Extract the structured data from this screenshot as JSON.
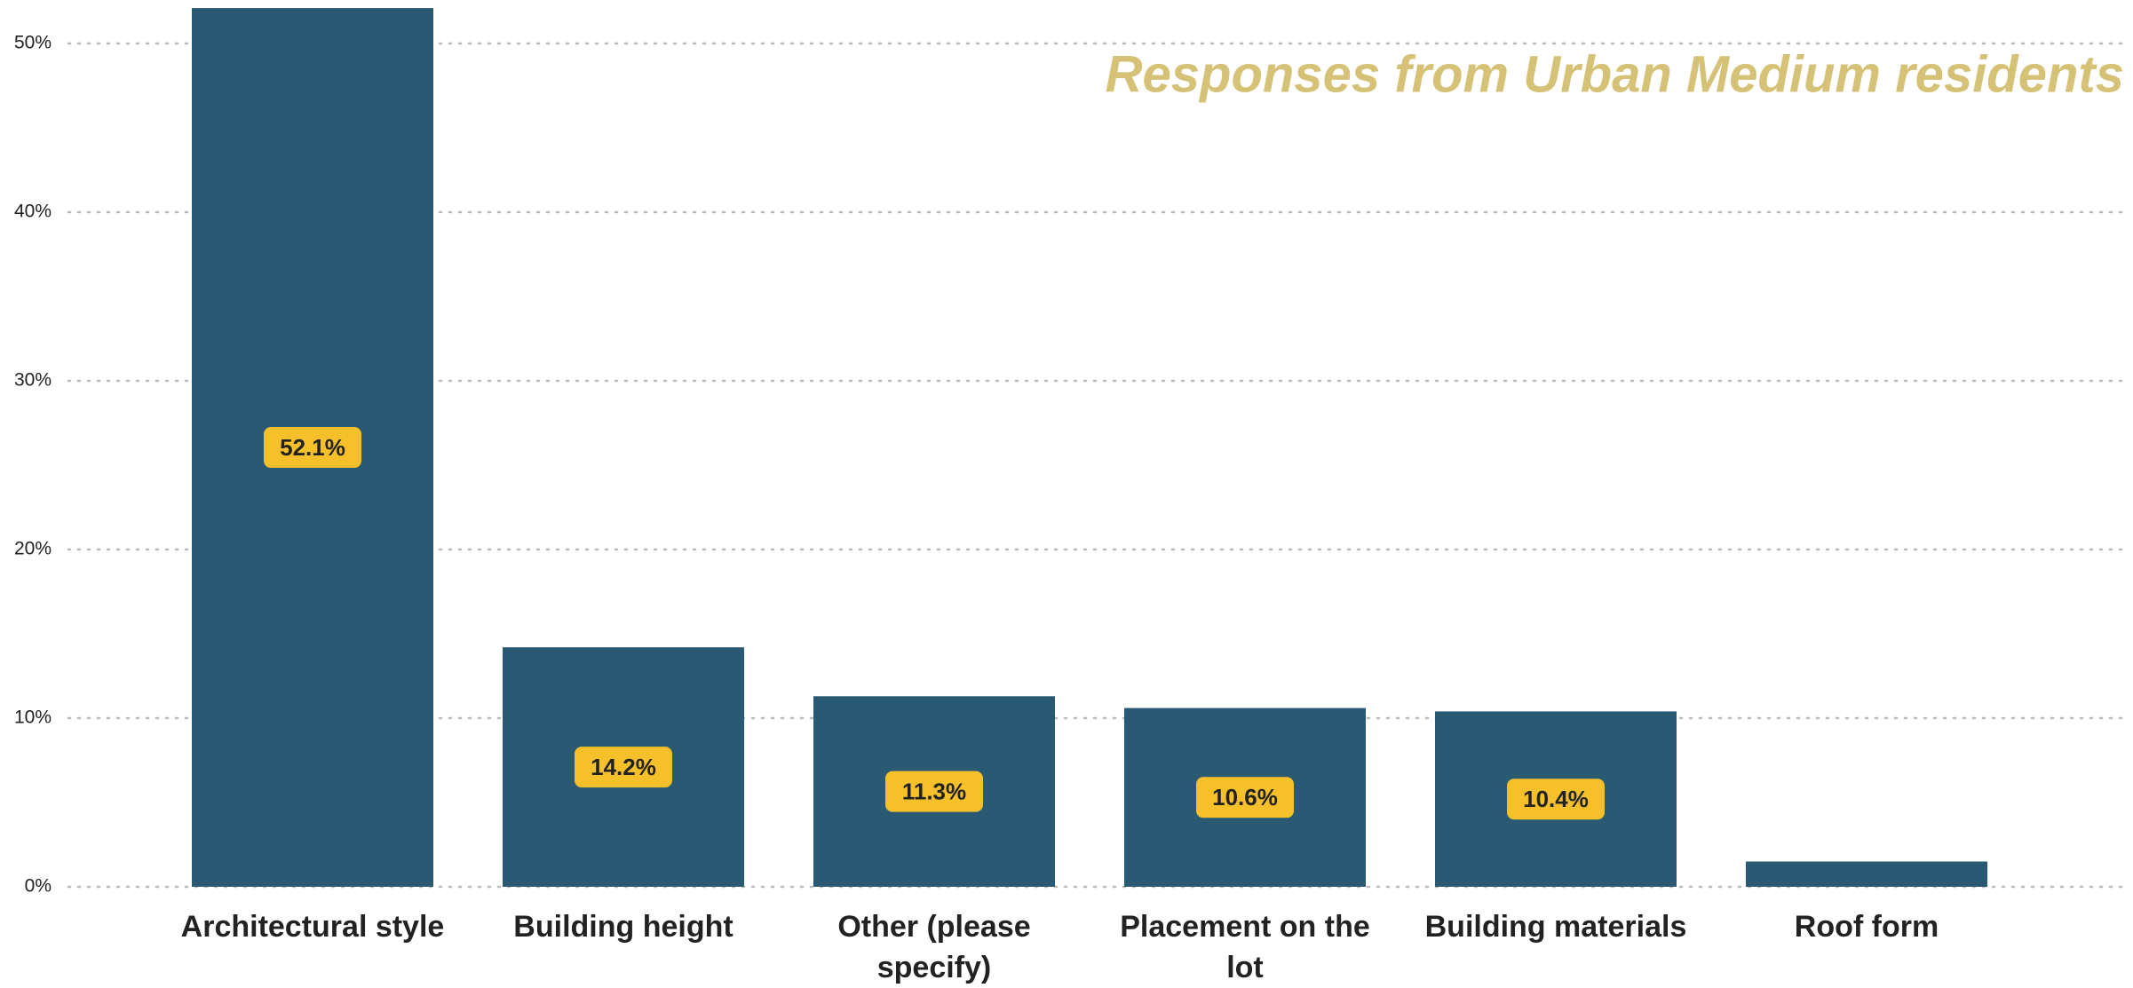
{
  "chart_data": {
    "type": "bar",
    "title": "Responses from Urban Medium residents",
    "categories": [
      "Architectural style",
      "Building height",
      "Other (please specify)",
      "Placement on the lot",
      "Building materials",
      "Roof form"
    ],
    "values": [
      52.1,
      14.2,
      11.3,
      10.6,
      10.4,
      1.5
    ],
    "value_labels": [
      "52.1%",
      "14.2%",
      "11.3%",
      "10.6%",
      "10.4%",
      null
    ],
    "color": "#2a5a73",
    "label_color": "#f5c02a",
    "title_color": "#d6c277",
    "ylim": [
      0,
      52.5
    ],
    "yticks": [
      {
        "value": 0,
        "label": "0%"
      },
      {
        "value": 10,
        "label": "10%"
      },
      {
        "value": 20,
        "label": "20%"
      },
      {
        "value": 30,
        "label": "30%"
      },
      {
        "value": 40,
        "label": "40%"
      },
      {
        "value": 50,
        "label": "50%"
      }
    ],
    "grid": true
  }
}
